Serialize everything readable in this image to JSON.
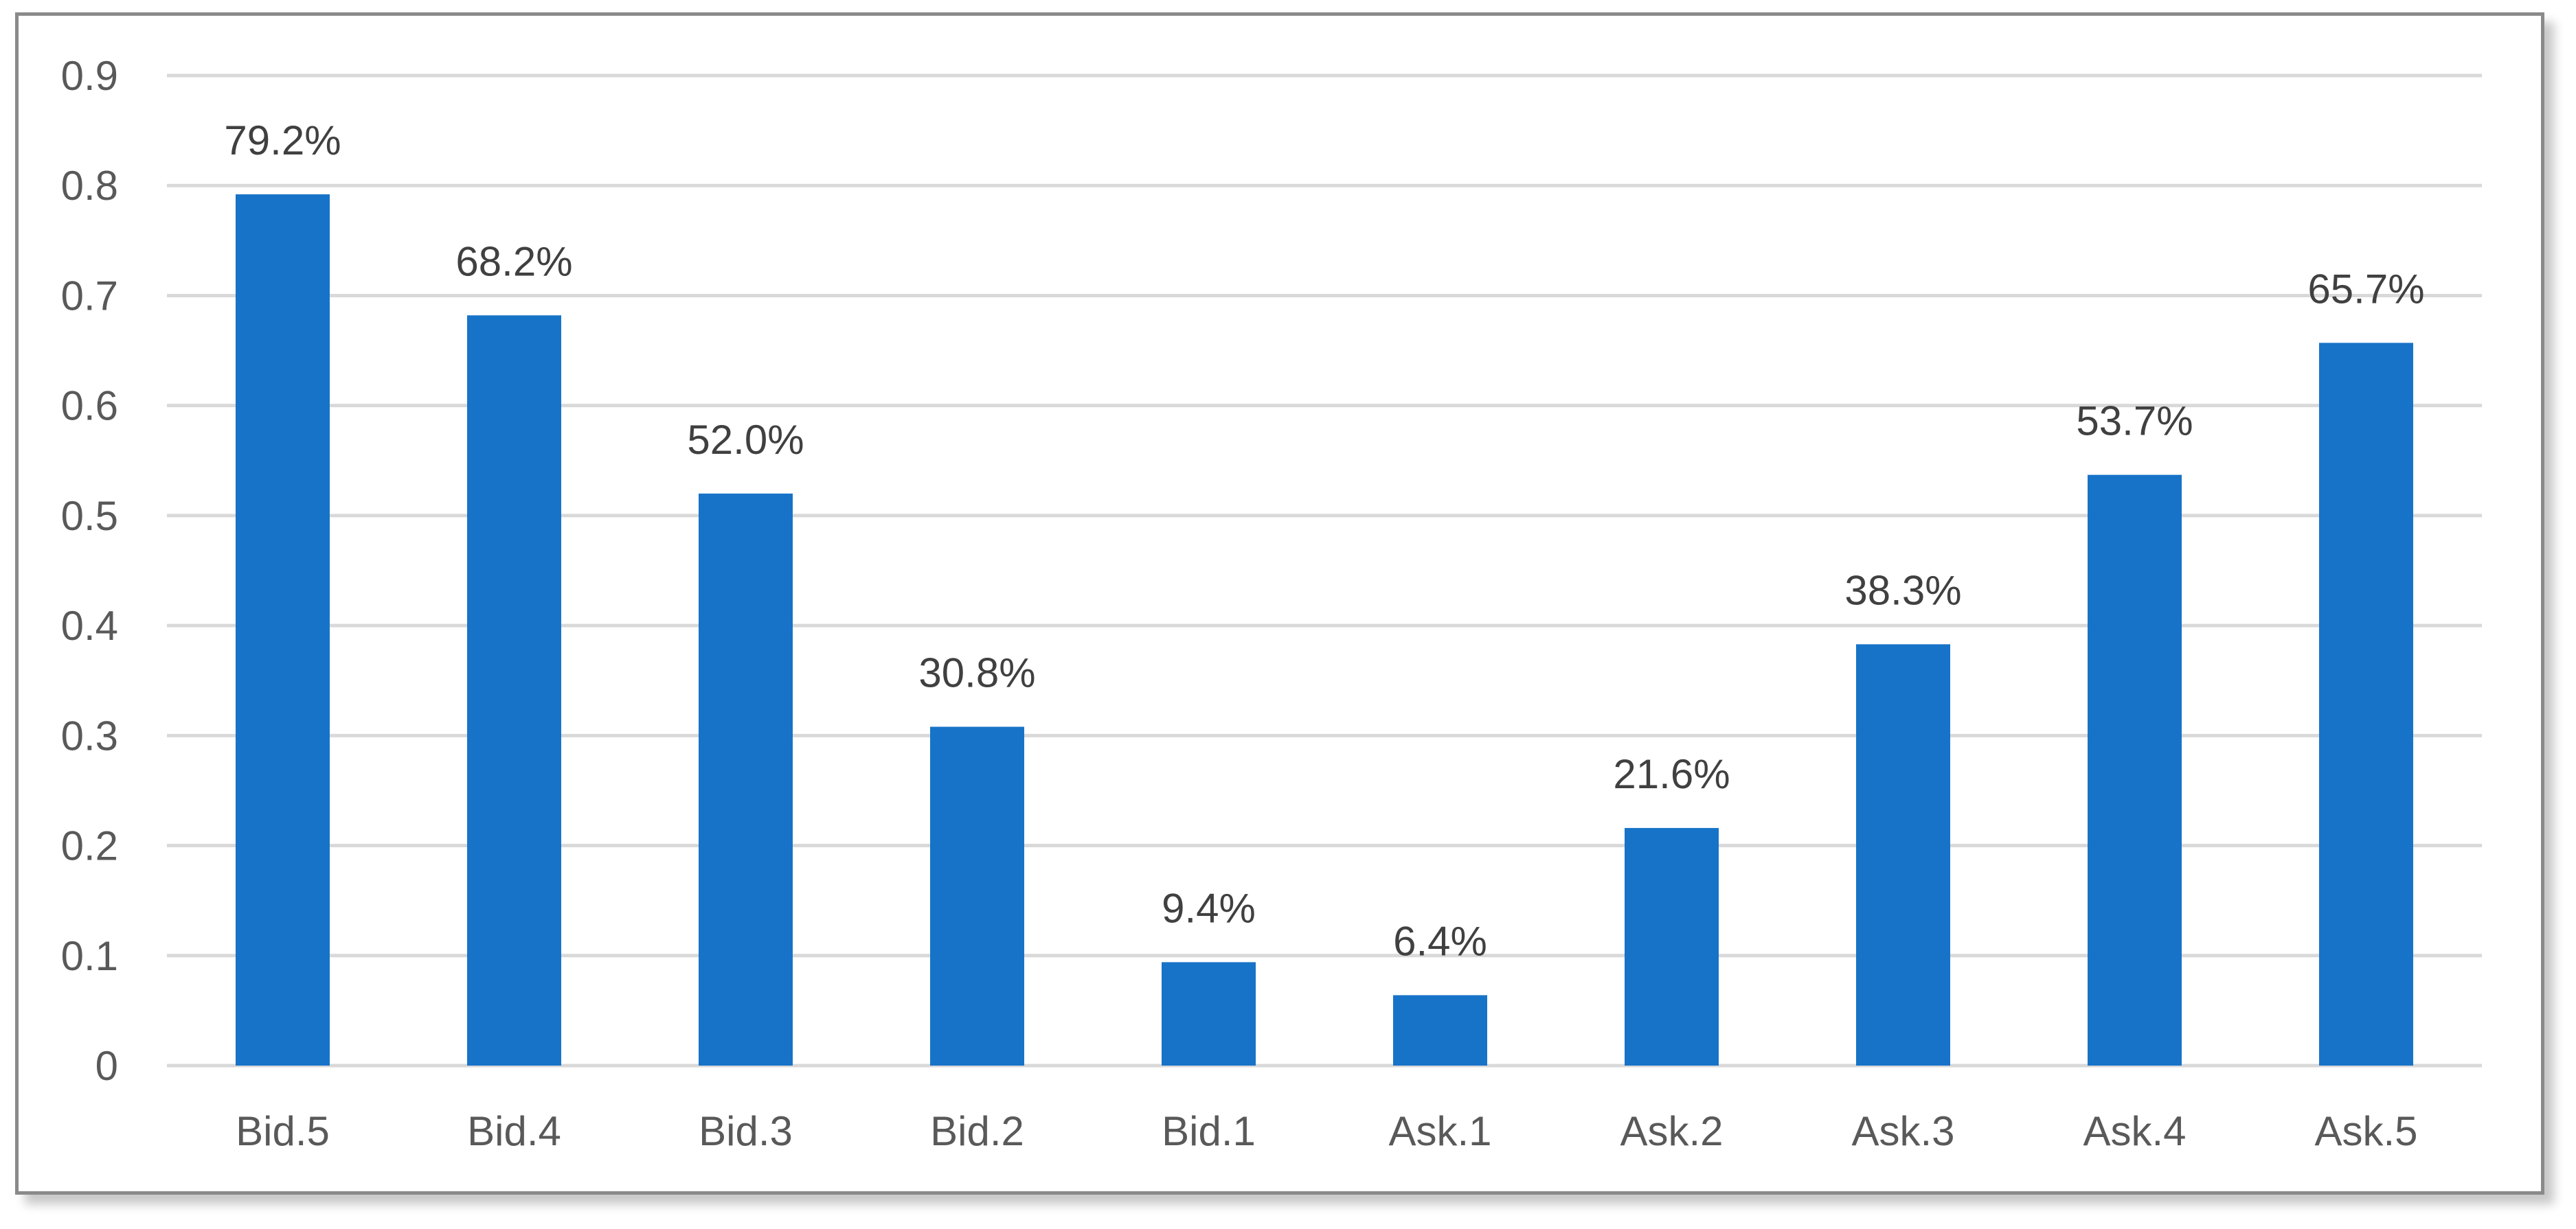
{
  "chart_data": {
    "type": "bar",
    "title": "",
    "xlabel": "",
    "ylabel": "",
    "categories": [
      "Bid.5",
      "Bid.4",
      "Bid.3",
      "Bid.2",
      "Bid.1",
      "Ask.1",
      "Ask.2",
      "Ask.3",
      "Ask.4",
      "Ask.5"
    ],
    "values": [
      0.792,
      0.682,
      0.52,
      0.308,
      0.094,
      0.064,
      0.216,
      0.383,
      0.537,
      0.657
    ],
    "data_labels": [
      "79.2%",
      "68.2%",
      "52.0%",
      "30.8%",
      "9.4%",
      "6.4%",
      "21.6%",
      "38.3%",
      "53.7%",
      "65.7%"
    ],
    "ylim": [
      0,
      0.9
    ],
    "yticks": [
      0,
      0.1,
      0.2,
      0.3,
      0.4,
      0.5,
      0.6,
      0.7,
      0.8,
      0.9
    ],
    "ytick_labels": [
      "0",
      "0.1",
      "0.2",
      "0.3",
      "0.4",
      "0.5",
      "0.6",
      "0.7",
      "0.8",
      "0.9"
    ],
    "grid": true,
    "legend": "none",
    "bar_color": "#1773C8",
    "grid_color": "#D9D9D9"
  }
}
